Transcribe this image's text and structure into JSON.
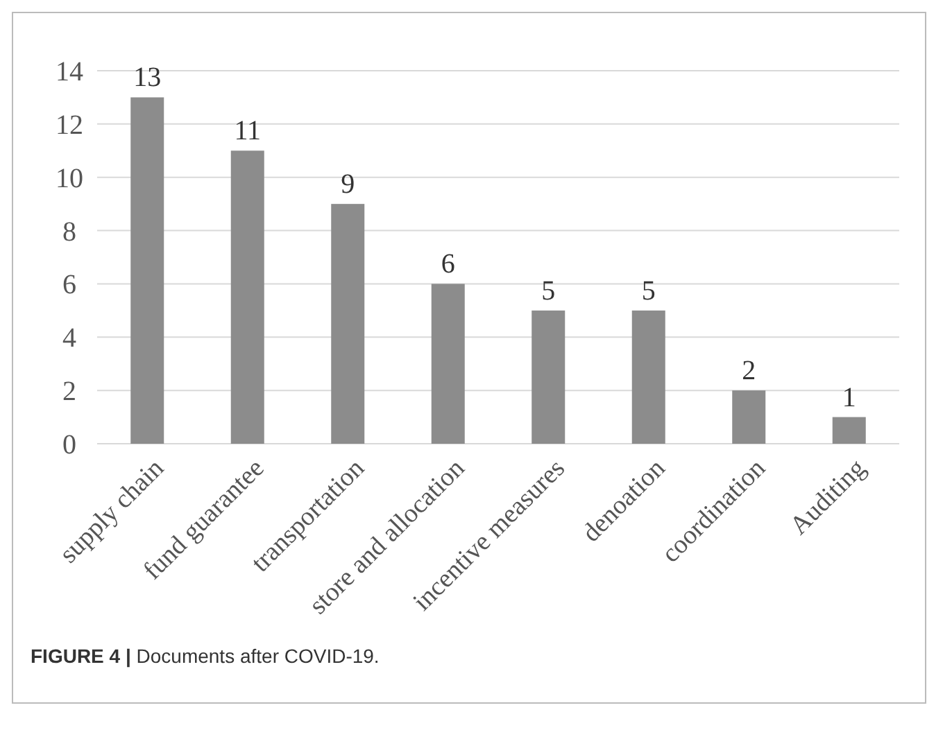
{
  "chart_data": {
    "type": "bar",
    "categories": [
      "supply chain",
      "fund guarantee",
      "transportation",
      "store and allocation",
      "incentive measures",
      "denoation",
      "coordination",
      "Auditing"
    ],
    "values": [
      13,
      11,
      9,
      6,
      5,
      5,
      2,
      1
    ],
    "color": "#8c8c8c",
    "ylim": [
      0,
      14
    ],
    "yticks": [
      0,
      2,
      4,
      6,
      8,
      10,
      12,
      14
    ],
    "grid": "y",
    "data_labels": true,
    "annotations": [
      "FIGURE 4 | Documents after COVID-19."
    ]
  }
}
